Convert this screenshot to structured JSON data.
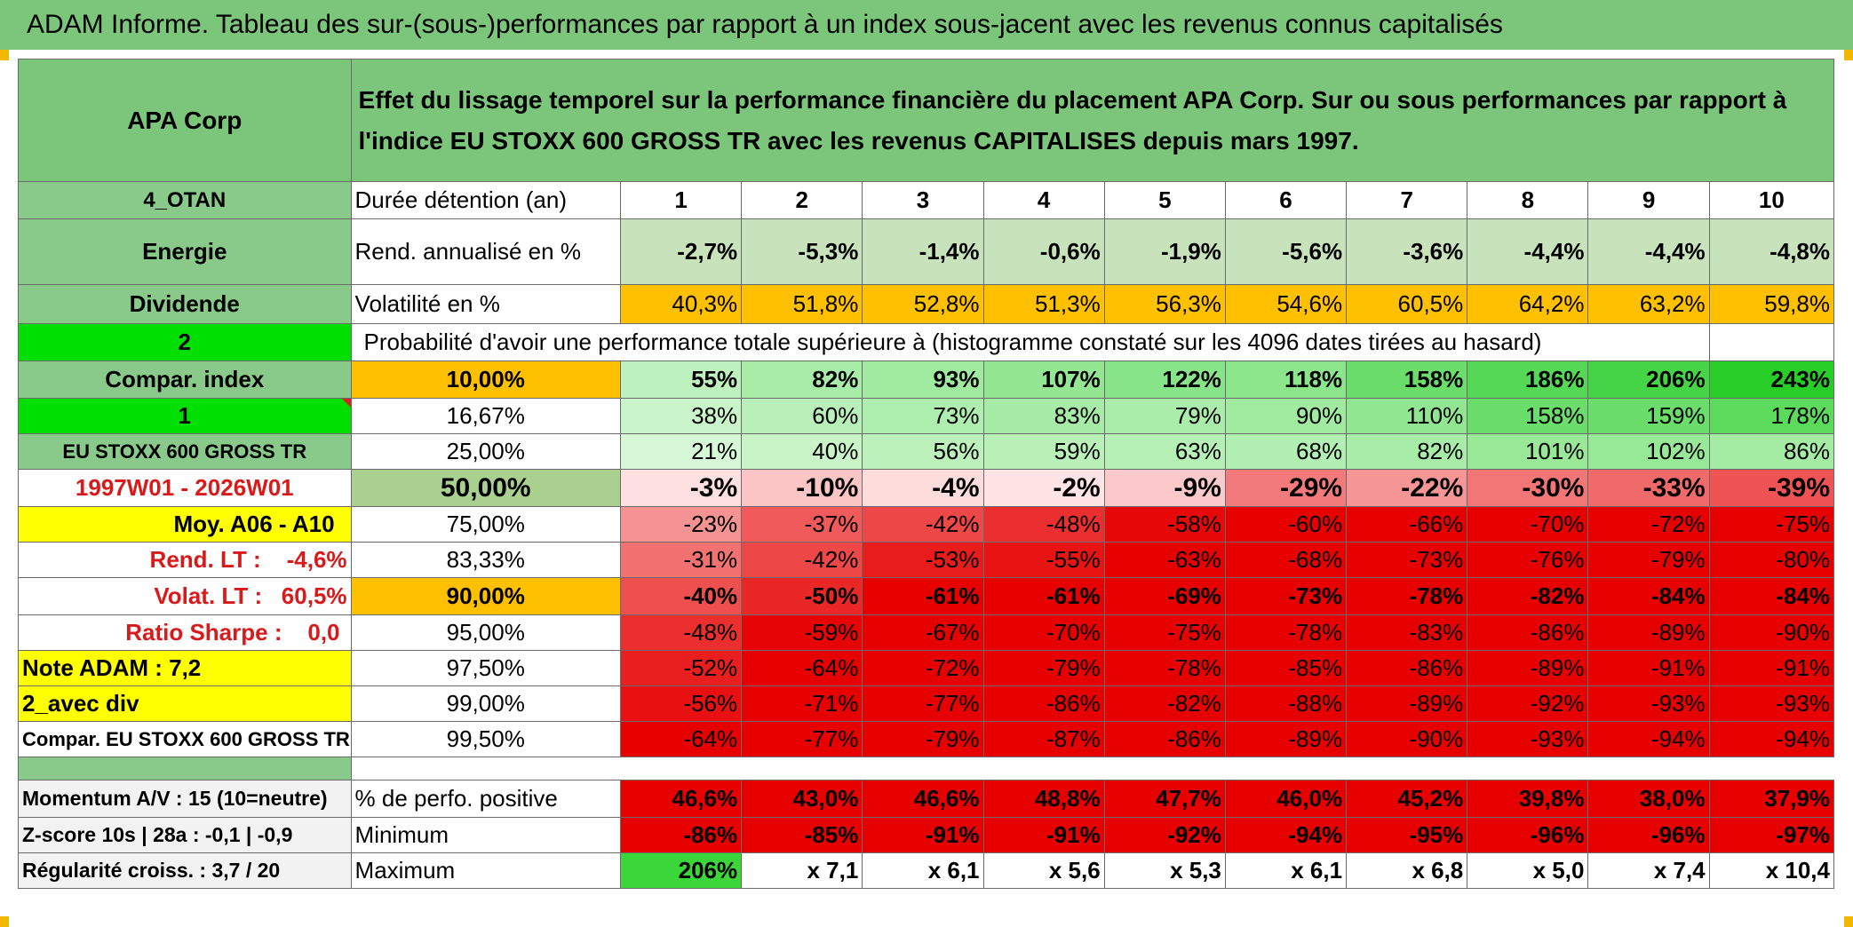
{
  "title": "ADAM Informe. Tableau des sur-(sous-)performances par rapport à un index sous-jacent avec les revenus connus capitalisés",
  "header": {
    "company": "APA Corp",
    "description": "Effet du lissage temporel sur la performance financière du placement APA Corp. Sur ou sous performances par rapport à l'indice EU STOXX 600 GROSS TR avec les revenus CAPITALISES depuis mars 1997."
  },
  "info": {
    "code": "4_OTAN",
    "sector": "Energie",
    "type": "Dividende",
    "n2": "2",
    "compar_index": "Compar. index",
    "n1": "1",
    "index_name": "EU STOXX 600 GROSS TR",
    "period": "1997W01 - 2026W01",
    "moy": "Moy. A06 - A10",
    "rend_lt": "Rend. LT :    -4,6%",
    "volat_lt": "Volat. LT :   60,5%",
    "sharpe": "Ratio Sharpe :    0,0",
    "note": "Note ADAM : 7,2",
    "avec_div": "2_avec div",
    "compar_name": "Compar. EU STOXX 600 GROSS TR",
    "momentum": "Momentum A/V : 15 (10=neutre)",
    "zscore": "Z-score 10s | 28a : -0,1 | -0,9",
    "regularite": "Régularité croiss. : 3,7 / 20"
  },
  "durations": {
    "label": "Durée détention (an)",
    "values": [
      "1",
      "2",
      "3",
      "4",
      "5",
      "6",
      "7",
      "8",
      "9",
      "10"
    ]
  },
  "rend": {
    "label": "Rend. annualisé en %",
    "values": [
      "-2,7%",
      "-5,3%",
      "-1,4%",
      "-0,6%",
      "-1,9%",
      "-5,6%",
      "-3,6%",
      "-4,4%",
      "-4,4%",
      "-4,8%"
    ]
  },
  "volat": {
    "label": "Volatilité en %",
    "values": [
      "40,3%",
      "51,8%",
      "52,8%",
      "51,3%",
      "56,3%",
      "54,6%",
      "60,5%",
      "64,2%",
      "63,2%",
      "59,8%"
    ]
  },
  "proba_label": "Probabilité d'avoir une performance totale supérieure à (histogramme constaté sur les 4096 dates tirées au hasard)",
  "quantiles": [
    {
      "pct": "10,00%",
      "values": [
        "55%",
        "82%",
        "93%",
        "107%",
        "122%",
        "118%",
        "158%",
        "186%",
        "206%",
        "243%"
      ]
    },
    {
      "pct": "16,67%",
      "values": [
        "38%",
        "60%",
        "73%",
        "83%",
        "79%",
        "90%",
        "110%",
        "158%",
        "159%",
        "178%"
      ]
    },
    {
      "pct": "25,00%",
      "values": [
        "21%",
        "40%",
        "56%",
        "59%",
        "63%",
        "68%",
        "82%",
        "101%",
        "102%",
        "86%"
      ]
    },
    {
      "pct": "50,00%",
      "values": [
        "-3%",
        "-10%",
        "-4%",
        "-2%",
        "-9%",
        "-29%",
        "-22%",
        "-30%",
        "-33%",
        "-39%"
      ]
    },
    {
      "pct": "75,00%",
      "values": [
        "-23%",
        "-37%",
        "-42%",
        "-48%",
        "-58%",
        "-60%",
        "-66%",
        "-70%",
        "-72%",
        "-75%"
      ]
    },
    {
      "pct": "83,33%",
      "values": [
        "-31%",
        "-42%",
        "-53%",
        "-55%",
        "-63%",
        "-68%",
        "-73%",
        "-76%",
        "-79%",
        "-80%"
      ]
    },
    {
      "pct": "90,00%",
      "values": [
        "-40%",
        "-50%",
        "-61%",
        "-61%",
        "-69%",
        "-73%",
        "-78%",
        "-82%",
        "-84%",
        "-84%"
      ]
    },
    {
      "pct": "95,00%",
      "values": [
        "-48%",
        "-59%",
        "-67%",
        "-70%",
        "-75%",
        "-78%",
        "-83%",
        "-86%",
        "-89%",
        "-90%"
      ]
    },
    {
      "pct": "97,50%",
      "values": [
        "-52%",
        "-64%",
        "-72%",
        "-79%",
        "-78%",
        "-85%",
        "-86%",
        "-89%",
        "-91%",
        "-91%"
      ]
    },
    {
      "pct": "99,00%",
      "values": [
        "-56%",
        "-71%",
        "-77%",
        "-86%",
        "-82%",
        "-88%",
        "-89%",
        "-92%",
        "-93%",
        "-93%"
      ]
    },
    {
      "pct": "99,50%",
      "values": [
        "-64%",
        "-77%",
        "-79%",
        "-87%",
        "-86%",
        "-89%",
        "-90%",
        "-93%",
        "-94%",
        "-94%"
      ]
    }
  ],
  "stats": [
    {
      "label": "% de perfo. positive",
      "values": [
        "46,6%",
        "43,0%",
        "46,6%",
        "48,8%",
        "47,7%",
        "46,0%",
        "45,2%",
        "39,8%",
        "38,0%",
        "37,9%"
      ]
    },
    {
      "label": "Minimum",
      "values": [
        "-86%",
        "-85%",
        "-91%",
        "-91%",
        "-92%",
        "-94%",
        "-95%",
        "-96%",
        "-96%",
        "-97%"
      ]
    },
    {
      "label": "Maximum",
      "values": [
        "206%",
        "x 7,1",
        "x 6,1",
        "x 5,6",
        "x 5,3",
        "x 6,1",
        "x 6,8",
        "x 5,0",
        "x 7,4",
        "x 10,4"
      ]
    }
  ],
  "colors": {
    "header_green": "#7cc67c",
    "bright_green": "#00e000",
    "highlight_yellow": "#ffff00",
    "orange": "#ffc000",
    "text_red": "#d81a1a"
  }
}
